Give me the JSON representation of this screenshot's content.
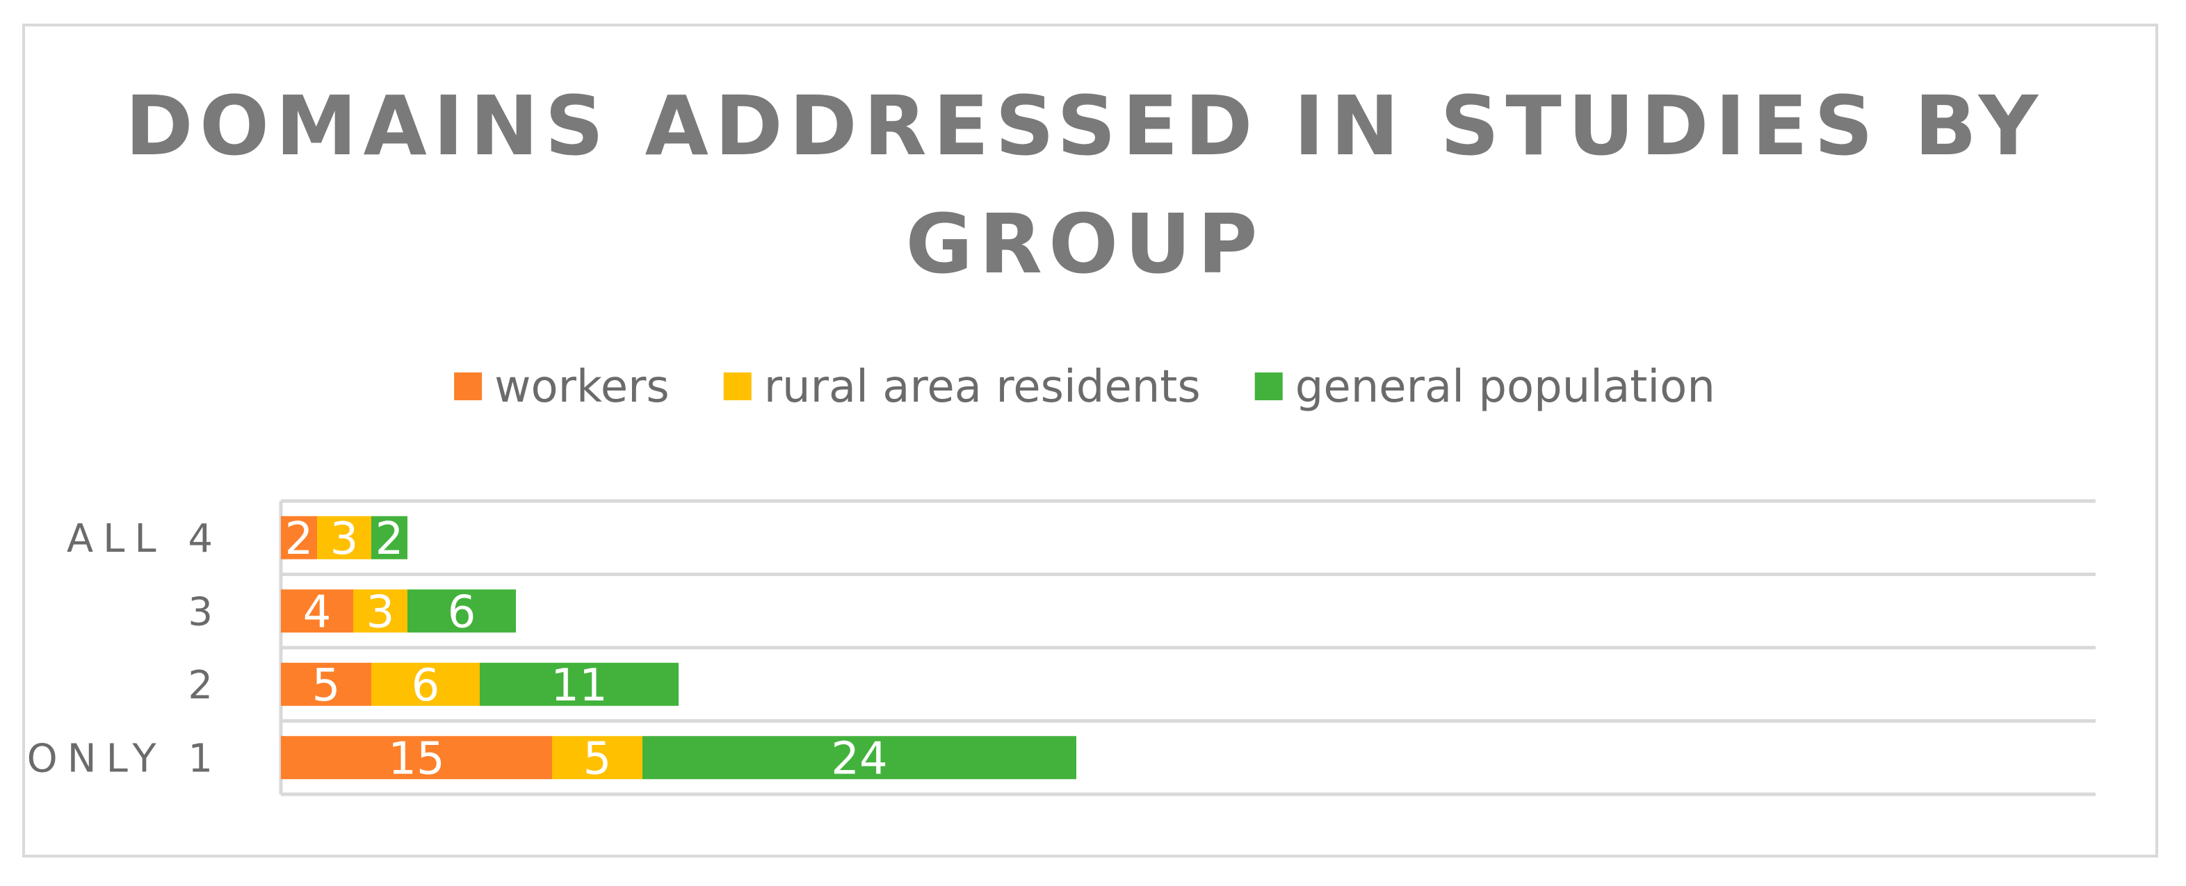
{
  "chart_data": {
    "type": "bar",
    "orientation": "horizontal",
    "stacked": true,
    "title_lines": [
      "DOMAINS ADDRESSED IN STUDIES BY",
      "GROUP"
    ],
    "categories": [
      "ALL 4",
      "3",
      "2",
      "ONLY 1"
    ],
    "series": [
      {
        "name": "workers",
        "color": "#fe7f2a",
        "values": [
          2,
          4,
          5,
          15
        ]
      },
      {
        "name": "rural area residents",
        "color": "#ffc000",
        "values": [
          3,
          3,
          6,
          5
        ]
      },
      {
        "name": "general population",
        "color": "#43b23c",
        "values": [
          2,
          6,
          11,
          24
        ]
      }
    ],
    "xlim": [
      0,
      50
    ],
    "show_x_axis_labels": false,
    "gridlines": "horizontal",
    "legend_position": "top",
    "data_labels": true,
    "gridline_color": "#d9d9d9"
  }
}
